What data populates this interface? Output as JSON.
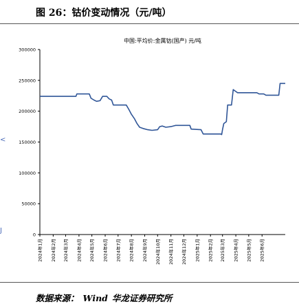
{
  "figure_title": "图 26：钴价变动情况（元/吨）",
  "source": {
    "label": "数据来源：",
    "items": [
      "Wind",
      "华龙证券研究所"
    ]
  },
  "chart_data": {
    "type": "line",
    "legend": "中国:平均价:金属钴(国产) 元/吨",
    "legend_position": "top-center",
    "grid": false,
    "ylim": [
      0,
      300000
    ],
    "y_ticks": [
      0,
      50000,
      100000,
      150000,
      200000,
      250000,
      300000
    ],
    "x_range": [
      "2024-01-01",
      "2025-07-25"
    ],
    "x_ticks": [
      {
        "date": "2024-01-01",
        "label": "2024年1月"
      },
      {
        "date": "2024-02-01",
        "label": "2024年2月"
      },
      {
        "date": "2024-03-01",
        "label": "2024年3月"
      },
      {
        "date": "2024-04-01",
        "label": "2024年4月"
      },
      {
        "date": "2024-05-01",
        "label": "2024年5月"
      },
      {
        "date": "2024-06-01",
        "label": "2024年6月"
      },
      {
        "date": "2024-07-01",
        "label": "2024年7月"
      },
      {
        "date": "2024-08-01",
        "label": "2024年8月"
      },
      {
        "date": "2024-09-01",
        "label": "2024年9月"
      },
      {
        "date": "2024-10-01",
        "label": "2024年10月"
      },
      {
        "date": "2024-11-01",
        "label": "2024年11月"
      },
      {
        "date": "2024-12-01",
        "label": "2024年12月"
      },
      {
        "date": "2025-01-01",
        "label": "2025年1月"
      },
      {
        "date": "2025-02-01",
        "label": "2025年2月"
      },
      {
        "date": "2025-03-01",
        "label": "2025年3月"
      },
      {
        "date": "2025-04-01",
        "label": "2025年4月"
      },
      {
        "date": "2025-05-01",
        "label": "2025年5月"
      },
      {
        "date": "2025-06-01",
        "label": "2025年6月"
      }
    ],
    "series": [
      {
        "name": "中国:平均价:金属钴(国产) 元/吨",
        "color": "#2f5597",
        "points": [
          [
            "2024-01-01",
            224000
          ],
          [
            "2024-03-25",
            224000
          ],
          [
            "2024-03-27",
            228000
          ],
          [
            "2024-04-25",
            228000
          ],
          [
            "2024-04-29",
            221000
          ],
          [
            "2024-05-06",
            218000
          ],
          [
            "2024-05-12",
            216000
          ],
          [
            "2024-05-20",
            217000
          ],
          [
            "2024-05-26",
            224000
          ],
          [
            "2024-06-05",
            224000
          ],
          [
            "2024-06-10",
            220000
          ],
          [
            "2024-06-16",
            218000
          ],
          [
            "2024-06-20",
            210000
          ],
          [
            "2024-07-20",
            210000
          ],
          [
            "2024-07-26",
            203000
          ],
          [
            "2024-08-01",
            195000
          ],
          [
            "2024-08-08",
            188000
          ],
          [
            "2024-08-14",
            180000
          ],
          [
            "2024-08-20",
            174000
          ],
          [
            "2024-08-28",
            172000
          ],
          [
            "2024-09-08",
            170000
          ],
          [
            "2024-09-18",
            169000
          ],
          [
            "2024-10-01",
            170000
          ],
          [
            "2024-10-06",
            175000
          ],
          [
            "2024-10-12",
            176000
          ],
          [
            "2024-10-20",
            174000
          ],
          [
            "2024-11-01",
            175000
          ],
          [
            "2024-11-12",
            177000
          ],
          [
            "2024-12-15",
            177000
          ],
          [
            "2024-12-18",
            171000
          ],
          [
            "2025-01-10",
            170000
          ],
          [
            "2025-01-15",
            163000
          ],
          [
            "2025-02-25",
            163000
          ],
          [
            "2025-02-27",
            162000
          ],
          [
            "2025-03-01",
            170000
          ],
          [
            "2025-03-04",
            180000
          ],
          [
            "2025-03-10",
            183000
          ],
          [
            "2025-03-13",
            210000
          ],
          [
            "2025-03-22",
            210000
          ],
          [
            "2025-03-26",
            235000
          ],
          [
            "2025-04-01",
            232000
          ],
          [
            "2025-04-05",
            230000
          ],
          [
            "2025-05-20",
            230000
          ],
          [
            "2025-05-25",
            228000
          ],
          [
            "2025-06-05",
            228000
          ],
          [
            "2025-06-10",
            226000
          ],
          [
            "2025-07-10",
            226000
          ],
          [
            "2025-07-13",
            245000
          ],
          [
            "2025-07-25",
            245000
          ]
        ]
      }
    ]
  }
}
